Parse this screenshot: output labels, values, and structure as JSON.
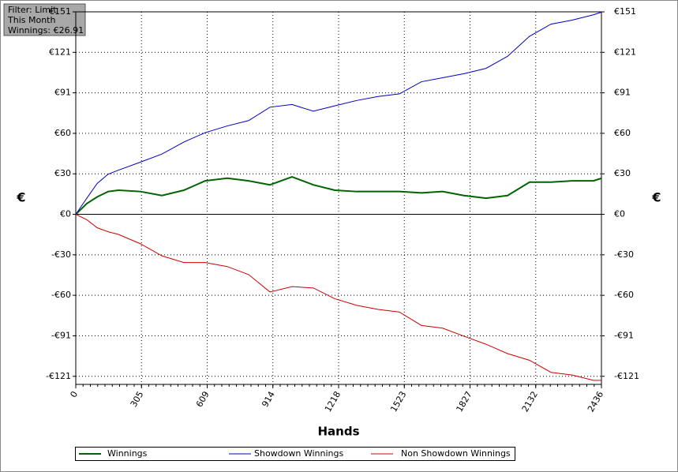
{
  "chart_data": {
    "type": "line",
    "info_box": [
      "Filter: Limit",
      "This Month",
      "Winnings: €26.91"
    ],
    "xlabel": "Hands",
    "ylabel": "€",
    "y2label": "€",
    "x": [
      0,
      51,
      99,
      150,
      198,
      300,
      399,
      501,
      600,
      702,
      801,
      900,
      1002,
      1101,
      1200,
      1302,
      1401,
      1500,
      1602,
      1700,
      1799,
      1901,
      2001,
      2103,
      2202,
      2300,
      2399,
      2436
    ],
    "series": [
      {
        "name": "Winnings",
        "color": "#006400",
        "width": 2,
        "values": [
          0,
          8,
          13,
          17,
          18,
          17,
          14,
          18,
          25,
          27,
          25,
          22,
          28,
          22,
          18,
          17,
          17,
          17,
          16,
          17,
          14,
          12,
          14,
          24,
          24,
          25,
          25,
          26.91
        ]
      },
      {
        "name": "Showdown Winnings",
        "color": "#0000c0",
        "width": 1,
        "values": [
          0,
          12,
          23,
          30,
          33,
          39,
          45,
          54,
          61,
          66,
          70,
          80,
          82,
          77,
          81,
          85,
          88,
          90,
          99,
          102,
          105,
          109,
          118,
          133,
          142,
          145,
          149,
          151
        ]
      },
      {
        "name": "Non Showdown Winnings",
        "color": "#d00000",
        "width": 1,
        "values": [
          0,
          -4,
          -10,
          -13,
          -15,
          -22,
          -31,
          -36,
          -36,
          -39,
          -45,
          -58,
          -54,
          -55,
          -63,
          -68,
          -71,
          -73,
          -83,
          -85,
          -91,
          -97,
          -104,
          -109,
          -118,
          -120,
          -124,
          -124
        ]
      }
    ],
    "xlim": [
      0,
      2436
    ],
    "xticks": [
      0,
      {
        "value": 304.5,
        "label": "305"
      },
      609,
      {
        "value": 913.5,
        "label": "914"
      },
      1218,
      {
        "value": 1522.5,
        "label": "1523"
      },
      1827,
      {
        "value": 2131.5,
        "label": "2132"
      },
      2436
    ],
    "ylim": [
      -127,
      151.2
    ],
    "yticks": [
      {
        "value": -120.96,
        "label": "-€121"
      },
      {
        "value": -90.72,
        "label": "-€91"
      },
      {
        "value": -60.48,
        "label": "-€60"
      },
      {
        "value": -30.24,
        "label": "-€30"
      },
      {
        "value": 0,
        "label": "€0"
      },
      {
        "value": 30.24,
        "label": "€30"
      },
      {
        "value": 60.48,
        "label": "€60"
      },
      {
        "value": 90.72,
        "label": "€91"
      },
      {
        "value": 120.96,
        "label": "€121"
      },
      {
        "value": 151.2,
        "label": "€151"
      }
    ],
    "grid": true
  }
}
